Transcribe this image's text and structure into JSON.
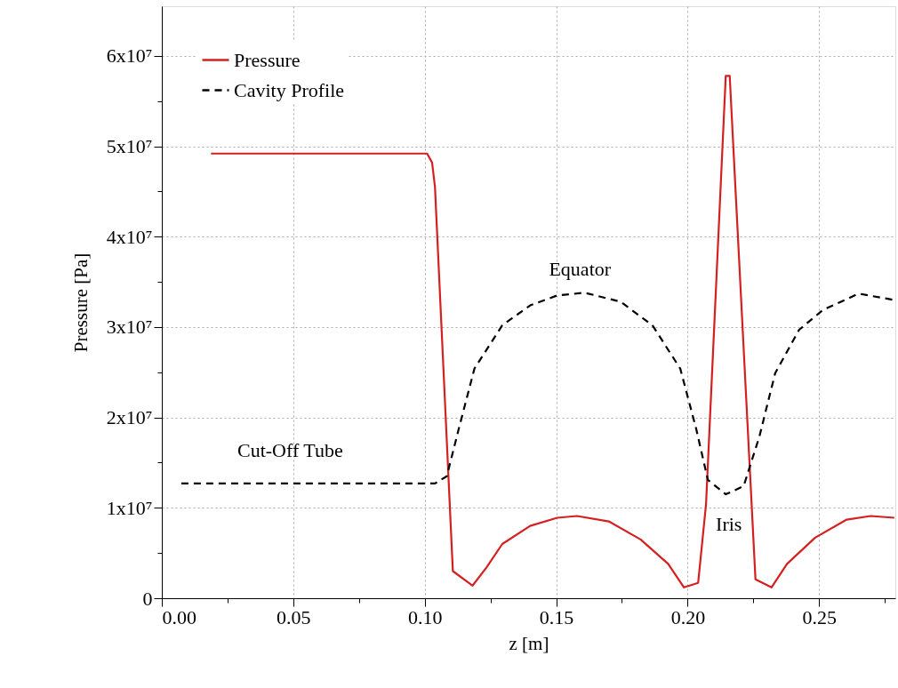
{
  "chart_data": {
    "type": "line",
    "xlabel": "z [m]",
    "ylabel": "Pressure [Pa]",
    "xlim": [
      0,
      0.279
    ],
    "ylim": [
      0,
      65500000
    ],
    "xticks": [
      {
        "value": 0,
        "label": "0.00"
      },
      {
        "value": 0.025,
        "label": null
      },
      {
        "value": 0.05,
        "label": "0.05"
      },
      {
        "value": 0.075,
        "label": null
      },
      {
        "value": 0.1,
        "label": "0.10"
      },
      {
        "value": 0.125,
        "label": null
      },
      {
        "value": 0.15,
        "label": "0.15"
      },
      {
        "value": 0.175,
        "label": null
      },
      {
        "value": 0.2,
        "label": "0.20"
      },
      {
        "value": 0.225,
        "label": null
      },
      {
        "value": 0.25,
        "label": "0.25"
      },
      {
        "value": 0.275,
        "label": null
      }
    ],
    "yticks": [
      0,
      {
        "value": 5000000,
        "label": null
      },
      {
        "value": 10000000,
        "label": "1x10⁷"
      },
      {
        "value": 15000000,
        "label": null
      },
      {
        "value": 20000000,
        "label": "2x10⁷"
      },
      {
        "value": 25000000,
        "label": null
      },
      {
        "value": 30000000,
        "label": "3x10⁷"
      },
      {
        "value": 35000000,
        "label": null
      },
      {
        "value": 40000000,
        "label": "4x10⁷"
      },
      {
        "value": 45000000,
        "label": null
      },
      {
        "value": 50000000,
        "label": "5x10⁷"
      },
      {
        "value": 55000000,
        "label": null
      },
      {
        "value": 60000000,
        "label": "6x10⁷"
      }
    ],
    "grid": true,
    "legend": "top left",
    "series": [
      {
        "name": "Pressure",
        "color": "#d42020",
        "line_style": "solid",
        "x": [
          0.0187,
          0.1009,
          0.1028,
          0.1039,
          0.1107,
          0.1182,
          0.1235,
          0.1295,
          0.1401,
          0.1504,
          0.1579,
          0.17,
          0.1821,
          0.1926,
          0.1986,
          0.204,
          0.207,
          0.2145,
          0.216,
          0.2258,
          0.2319,
          0.2378,
          0.2485,
          0.2605,
          0.2696,
          0.2786
        ],
        "values": [
          49200000,
          49200000,
          48200000,
          45500000,
          3000000,
          1400000,
          3400000,
          6000000,
          8000000,
          8900000,
          9100000,
          8500000,
          6500000,
          3800000,
          1200000,
          1700000,
          10400000,
          57800000,
          57800000,
          2100000,
          1200000,
          3800000,
          6700000,
          8700000,
          9100000,
          8900000
        ]
      },
      {
        "name": "Cavity Profile",
        "color": "#000000",
        "line_style": "dashed",
        "x": [
          0.0074,
          0.1039,
          0.1084,
          0.113,
          0.1189,
          0.1295,
          0.1401,
          0.1504,
          0.1609,
          0.1745,
          0.1866,
          0.1972,
          0.2032,
          0.2077,
          0.2145,
          0.2213,
          0.2273,
          0.2333,
          0.2424,
          0.2515,
          0.265,
          0.2786
        ],
        "values": [
          12700000,
          12700000,
          13500000,
          18800000,
          25400000,
          30200000,
          32400000,
          33500000,
          33800000,
          32800000,
          30200000,
          25400000,
          18800000,
          13100000,
          11500000,
          12400000,
          17900000,
          24900000,
          29700000,
          31900000,
          33700000,
          33000000
        ]
      }
    ],
    "annotations": [
      "Cut-Off Tube",
      "Equator",
      "Iris"
    ]
  }
}
